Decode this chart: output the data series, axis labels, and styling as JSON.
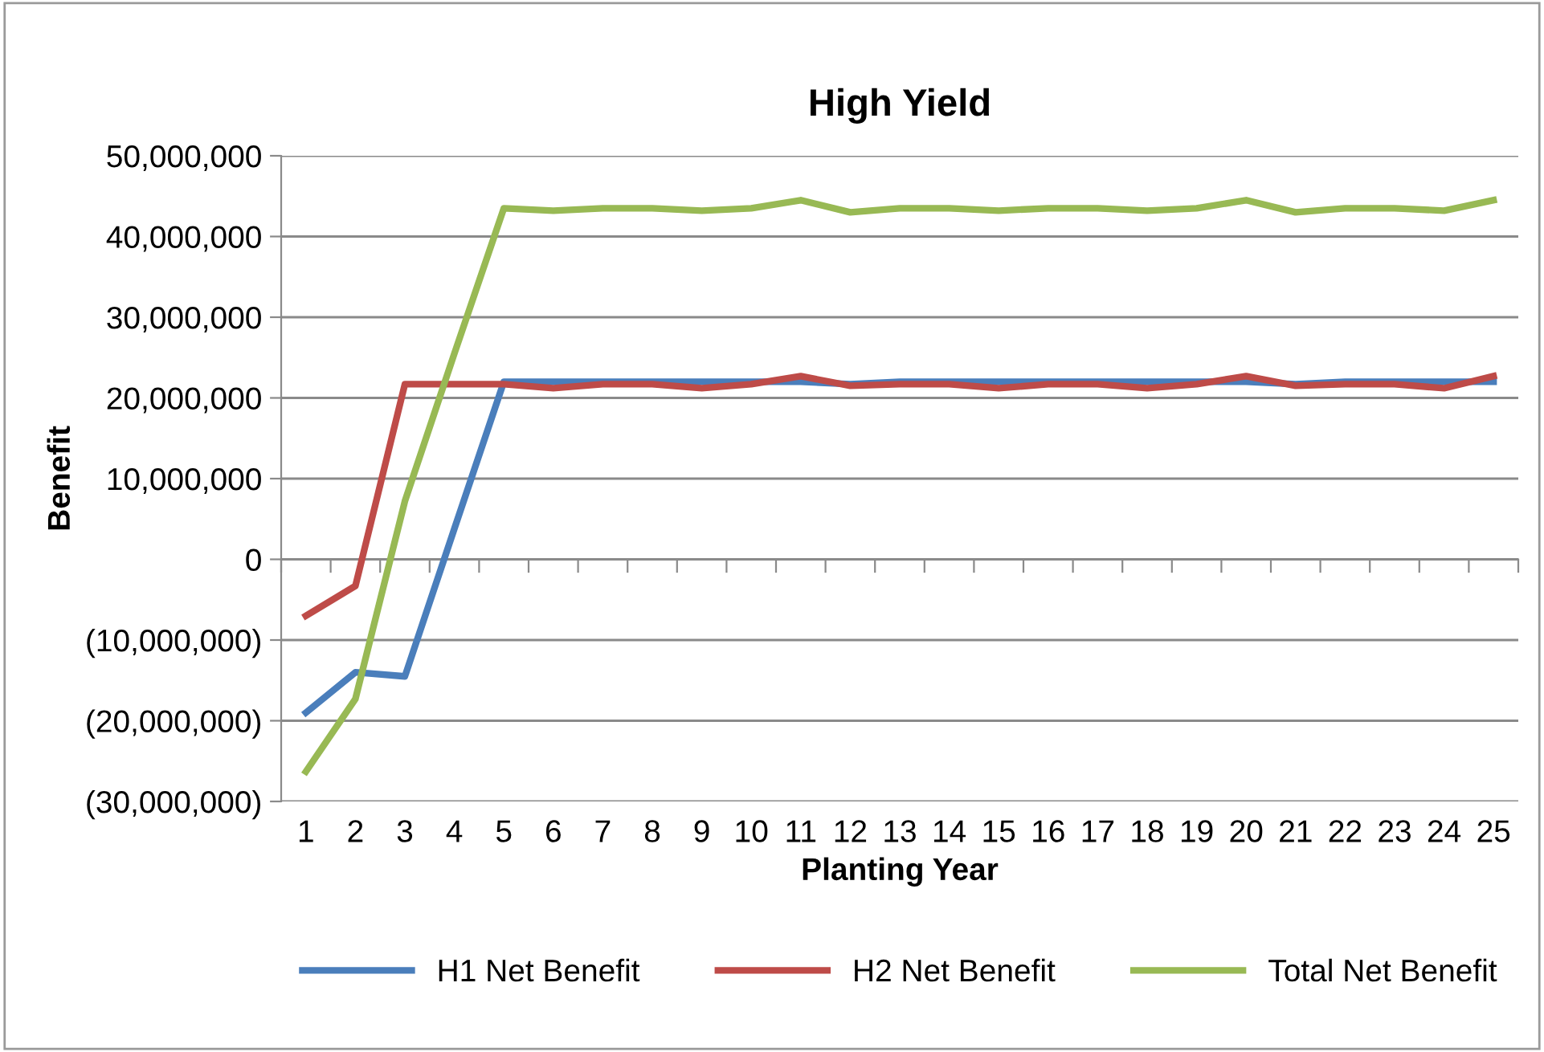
{
  "chart_data": {
    "type": "line",
    "title": "High Yield",
    "xlabel": "Planting Year",
    "ylabel": "Benefit",
    "categories": [
      "1",
      "2",
      "3",
      "4",
      "5",
      "6",
      "7",
      "8",
      "9",
      "10",
      "11",
      "12",
      "13",
      "14",
      "15",
      "16",
      "17",
      "18",
      "19",
      "20",
      "21",
      "22",
      "23",
      "24",
      "25"
    ],
    "series": [
      {
        "name": "H1 Net Benefit",
        "color": "#4a7ebb",
        "values": [
          -19000000,
          -14000000,
          -14500000,
          3800000,
          22000000,
          22000000,
          22000000,
          22000000,
          22000000,
          22000000,
          22000000,
          21700000,
          22000000,
          22000000,
          22000000,
          22000000,
          22000000,
          22000000,
          22000000,
          22000000,
          21700000,
          22000000,
          22000000,
          22000000,
          22000000
        ]
      },
      {
        "name": "H2 Net Benefit",
        "color": "#be4b48",
        "values": [
          -7000000,
          -3300000,
          21700000,
          21700000,
          21700000,
          21200000,
          21700000,
          21700000,
          21200000,
          21700000,
          22700000,
          21500000,
          21700000,
          21700000,
          21200000,
          21700000,
          21700000,
          21200000,
          21700000,
          22700000,
          21500000,
          21700000,
          21700000,
          21200000,
          22700000
        ]
      },
      {
        "name": "Total Net Benefit",
        "color": "#98b954",
        "values": [
          -26300000,
          -17300000,
          7200000,
          25500000,
          43500000,
          43200000,
          43500000,
          43500000,
          43200000,
          43500000,
          44500000,
          43000000,
          43500000,
          43500000,
          43200000,
          43500000,
          43500000,
          43200000,
          43500000,
          44500000,
          43000000,
          43500000,
          43500000,
          43200000,
          44500000
        ]
      }
    ],
    "ylim": [
      -30000000,
      50000000
    ],
    "yticks": [
      {
        "value": -30000000,
        "label": "(30,000,000)"
      },
      {
        "value": -20000000,
        "label": "(20,000,000)"
      },
      {
        "value": -10000000,
        "label": "(10,000,000)"
      },
      {
        "value": 0,
        "label": "0"
      },
      {
        "value": 10000000,
        "label": "10,000,000"
      },
      {
        "value": 20000000,
        "label": "20,000,000"
      },
      {
        "value": 30000000,
        "label": "30,000,000"
      },
      {
        "value": 40000000,
        "label": "40,000,000"
      },
      {
        "value": 50000000,
        "label": "50,000,000"
      }
    ],
    "grid": "y",
    "legend": "bottom",
    "marker": "none",
    "line_style": "solid"
  }
}
